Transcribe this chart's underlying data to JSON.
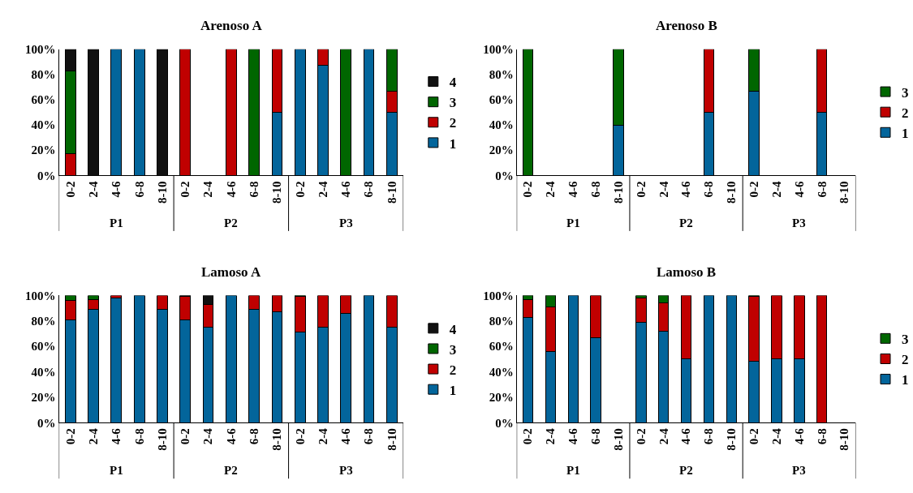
{
  "chart_data": [
    {
      "type": "bar",
      "title": "Arenoso A",
      "stacked": true,
      "legend": "right",
      "categories": [
        "0-2",
        "2-4",
        "4-6",
        "6-8",
        "8-10",
        "0-2",
        "2-4",
        "4-6",
        "6-8",
        "8-10",
        "0-2",
        "2-4",
        "4-6",
        "6-8",
        "8-10"
      ],
      "annotations": [
        "P1",
        "P2",
        "P3"
      ],
      "ylim": [
        0,
        100
      ],
      "yticks": [
        {
          "value": 0,
          "label": "0%"
        },
        {
          "value": 20,
          "label": "20%"
        },
        {
          "value": 40,
          "label": "40%"
        },
        {
          "value": 60,
          "label": "60%"
        },
        {
          "value": 80,
          "label": "80%"
        },
        {
          "value": 100,
          "label": "100%"
        }
      ],
      "series": [
        {
          "name": "1",
          "color": "#03659b",
          "values": [
            null,
            null,
            100,
            100,
            null,
            null,
            null,
            null,
            null,
            50,
            100,
            87,
            null,
            100,
            50
          ]
        },
        {
          "name": "2",
          "color": "#c00000",
          "values": [
            17,
            null,
            null,
            null,
            null,
            100,
            null,
            100,
            null,
            50,
            null,
            13,
            null,
            null,
            17
          ]
        },
        {
          "name": "3",
          "color": "#006600",
          "values": [
            66,
            null,
            null,
            null,
            null,
            null,
            null,
            null,
            100,
            null,
            null,
            null,
            100,
            null,
            33
          ]
        },
        {
          "name": "4",
          "color": "#111111",
          "values": [
            17,
            100,
            null,
            null,
            100,
            null,
            null,
            null,
            null,
            null,
            null,
            null,
            null,
            null,
            null
          ]
        }
      ]
    },
    {
      "type": "bar",
      "title": "Arenoso B",
      "stacked": true,
      "legend": "right",
      "categories": [
        "0-2",
        "2-4",
        "4-6",
        "6-8",
        "8-10",
        "0-2",
        "2-4",
        "4-6",
        "6-8",
        "8-10",
        "0-2",
        "2-4",
        "4-6",
        "6-8",
        "8-10"
      ],
      "annotations": [
        "P1",
        "P2",
        "P3"
      ],
      "ylim": [
        0,
        100
      ],
      "yticks": [
        {
          "value": 0,
          "label": "0%"
        },
        {
          "value": 20,
          "label": "20%"
        },
        {
          "value": 40,
          "label": "40%"
        },
        {
          "value": 60,
          "label": "60%"
        },
        {
          "value": 80,
          "label": "80%"
        },
        {
          "value": 100,
          "label": "100%"
        }
      ],
      "series": [
        {
          "name": "1",
          "color": "#03659b",
          "values": [
            null,
            null,
            null,
            null,
            40,
            null,
            null,
            null,
            50,
            null,
            67,
            null,
            null,
            50,
            null
          ]
        },
        {
          "name": "2",
          "color": "#c00000",
          "values": [
            null,
            null,
            null,
            null,
            null,
            null,
            null,
            null,
            50,
            null,
            null,
            null,
            null,
            50,
            null
          ]
        },
        {
          "name": "3",
          "color": "#006600",
          "values": [
            100,
            null,
            null,
            null,
            60,
            null,
            null,
            null,
            null,
            null,
            33,
            null,
            null,
            null,
            null
          ]
        }
      ]
    },
    {
      "type": "bar",
      "title": "Lamoso A",
      "stacked": true,
      "legend": "right",
      "categories": [
        "0-2",
        "2-4",
        "4-6",
        "6-8",
        "8-10",
        "0-2",
        "2-4",
        "4-6",
        "6-8",
        "8-10",
        "0-2",
        "2-4",
        "4-6",
        "6-8",
        "8-10"
      ],
      "annotations": [
        "P1",
        "P2",
        "P3"
      ],
      "ylim": [
        0,
        100
      ],
      "yticks": [
        {
          "value": 0,
          "label": "0%"
        },
        {
          "value": 20,
          "label": "20%"
        },
        {
          "value": 40,
          "label": "40%"
        },
        {
          "value": 60,
          "label": "60%"
        },
        {
          "value": 80,
          "label": "80%"
        },
        {
          "value": 100,
          "label": "100%"
        }
      ],
      "series": [
        {
          "name": "1",
          "color": "#03659b",
          "values": [
            81,
            89,
            98,
            100,
            89,
            81,
            75,
            100,
            89,
            87,
            71,
            75,
            86,
            100,
            75
          ]
        },
        {
          "name": "2",
          "color": "#c00000",
          "values": [
            15,
            8,
            2,
            null,
            11,
            18,
            18,
            null,
            11,
            13,
            28,
            25,
            14,
            null,
            25
          ]
        },
        {
          "name": "3",
          "color": "#006600",
          "values": [
            4,
            3,
            null,
            null,
            null,
            null,
            null,
            null,
            null,
            null,
            1,
            null,
            null,
            null,
            null
          ]
        },
        {
          "name": "4",
          "color": "#111111",
          "values": [
            null,
            null,
            null,
            null,
            null,
            1,
            7,
            null,
            null,
            null,
            null,
            null,
            null,
            null,
            null
          ]
        }
      ]
    },
    {
      "type": "bar",
      "title": "Lamoso B",
      "stacked": true,
      "legend": "right",
      "categories": [
        "0-2",
        "2-4",
        "4-6",
        "6-8",
        "8-10",
        "0-2",
        "2-4",
        "4-6",
        "6-8",
        "8-10",
        "0-2",
        "2-4",
        "4-6",
        "6-8",
        "8-10"
      ],
      "annotations": [
        "P1",
        "P2",
        "P3"
      ],
      "ylim": [
        0,
        100
      ],
      "yticks": [
        {
          "value": 0,
          "label": "0%"
        },
        {
          "value": 20,
          "label": "20%"
        },
        {
          "value": 40,
          "label": "40%"
        },
        {
          "value": 60,
          "label": "60%"
        },
        {
          "value": 80,
          "label": "80%"
        },
        {
          "value": 100,
          "label": "100%"
        }
      ],
      "series": [
        {
          "name": "1",
          "color": "#03659b",
          "values": [
            83,
            56,
            100,
            67,
            null,
            79,
            72,
            50,
            100,
            100,
            48,
            50,
            50,
            null,
            null
          ]
        },
        {
          "name": "2",
          "color": "#c00000",
          "values": [
            14,
            35,
            null,
            33,
            null,
            19,
            22,
            50,
            null,
            null,
            51,
            50,
            50,
            100,
            null
          ]
        },
        {
          "name": "3",
          "color": "#006600",
          "values": [
            3,
            9,
            null,
            null,
            null,
            2,
            6,
            null,
            null,
            null,
            1,
            null,
            null,
            null,
            null
          ]
        }
      ]
    }
  ]
}
